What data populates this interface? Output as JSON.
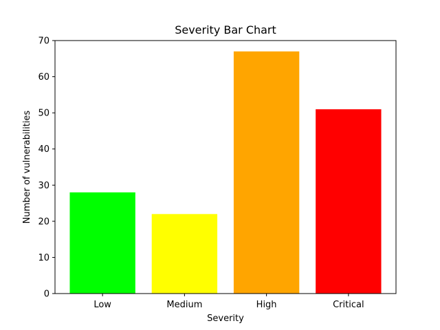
{
  "chart_data": {
    "type": "bar",
    "title": "Severity Bar Chart",
    "xlabel": "Severity",
    "ylabel": "Number of vulnerabilities",
    "categories": [
      "Low",
      "Medium",
      "High",
      "Critical"
    ],
    "values": [
      28,
      22,
      67,
      51
    ],
    "colors": [
      "#00ff00",
      "#ffff00",
      "#ffa500",
      "#ff0000"
    ],
    "ylim": [
      0,
      70
    ],
    "yticks": [
      0,
      10,
      20,
      30,
      40,
      50,
      60,
      70
    ],
    "grid": false,
    "legend": "none"
  }
}
